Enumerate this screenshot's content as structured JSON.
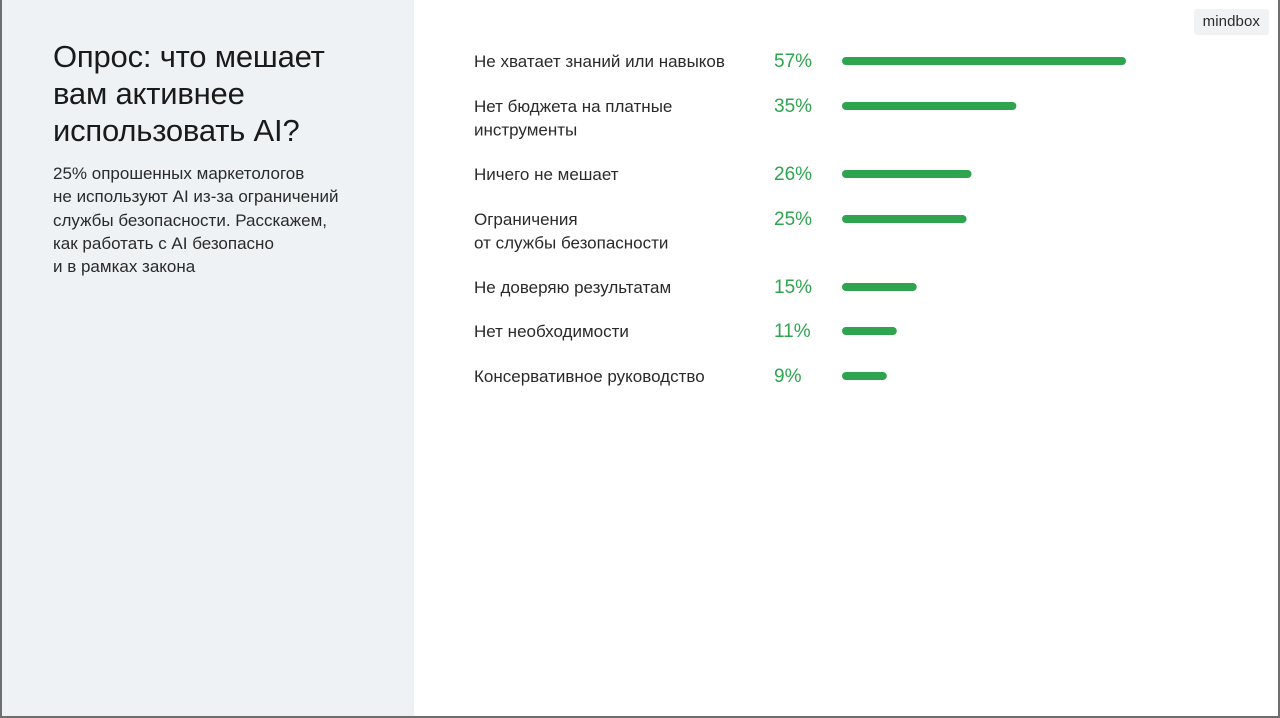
{
  "brand": {
    "logo_text": "mindbox"
  },
  "left": {
    "title": "Опрос: что мешает\nвам активнее\nиспользовать AI?",
    "description": "25% опрошенных маркетологов\nне используют AI из-за ограничений\nслужбы безопасности. Расскажем,\nкак работать с AI безопасно\nи в рамках закона"
  },
  "colors": {
    "accent": "#2ea44f",
    "panel_bg": "#eff2f5"
  },
  "chart_data": {
    "type": "bar",
    "orientation": "horizontal",
    "categories": [
      [
        "Не хватает знаний или навыков"
      ],
      [
        "Нет бюджета на платные",
        "инструменты"
      ],
      [
        "Ничего не мешает"
      ],
      [
        "Ограничения",
        "от службы безопасности"
      ],
      [
        "Не доверяю результатам"
      ],
      [
        "Нет необходимости"
      ],
      [
        "Консервативное руководство"
      ]
    ],
    "values": [
      57,
      35,
      26,
      25,
      15,
      11,
      9
    ],
    "value_labels": [
      "57%",
      "35%",
      "26%",
      "25%",
      "15%",
      "11%",
      "9%"
    ],
    "unit": "%",
    "xlim": [
      0,
      57
    ],
    "grid": false,
    "legend": "none"
  }
}
